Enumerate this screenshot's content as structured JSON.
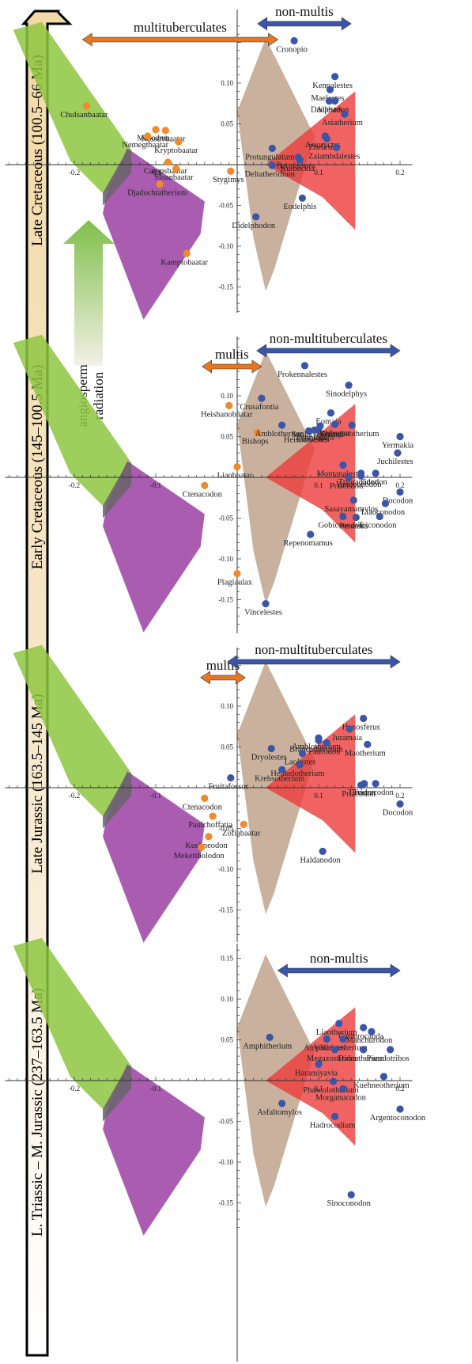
{
  "colors": {
    "multi_point": "#f08a2a",
    "nonmulti_point": "#3b55a8",
    "multi_arrow": "#e8751f",
    "nonmulti_arrow": "#3b55a8",
    "green_region": "#8dc63f",
    "purple_region": "#9b3fa3",
    "tan_region": "#bfa38c",
    "red_region": "#ee3b3b",
    "timebar_top": "#f3dfb4",
    "timebar_bottom": "#ffffff"
  },
  "radiation_label": [
    "angiosperm",
    "radiation"
  ],
  "chart_data": [
    {
      "type": "scatter",
      "period": "Late Cretaceous (100.5–66 Ma)",
      "x_ticks": [
        "-0.2",
        "-0.1",
        "0.1",
        "0.2"
      ],
      "y_ticks": [
        "0.10",
        "0.05",
        "-0.05",
        "-0.10",
        "-0.15"
      ],
      "range_arrows": [
        {
          "label": "multituberculates",
          "group": "multi",
          "x_from": -0.19,
          "x_to": 0.05
        },
        {
          "label": "non-multis",
          "group": "nonmulti",
          "x_from": 0.025,
          "x_to": 0.14
        }
      ],
      "multis": [
        {
          "name": "Chulsanbaatar",
          "x": -0.185,
          "y": 0.072
        },
        {
          "name": "Mesodma",
          "x": -0.1,
          "y": 0.043
        },
        {
          "name": "Nessovbaatar",
          "x": -0.088,
          "y": 0.042
        },
        {
          "name": "Nemegtbaatar",
          "x": -0.11,
          "y": 0.035
        },
        {
          "name": "Kryptobaatar",
          "x": -0.072,
          "y": 0.028
        },
        {
          "name": "Catopsbaatar",
          "x": -0.085,
          "y": 0.003
        },
        {
          "name": "Sloanbaatar",
          "x": -0.075,
          "y": -0.005
        },
        {
          "name": "Stygimys",
          "x": -0.008,
          "y": -0.008
        },
        {
          "name": "Djadochtatherium",
          "x": -0.095,
          "y": -0.024
        },
        {
          "name": "Kamptobaatar",
          "x": -0.062,
          "y": -0.109
        }
      ],
      "nonmultis": [
        {
          "name": "Cronopio",
          "x": 0.07,
          "y": 0.152
        },
        {
          "name": "Kennalestes",
          "x": 0.12,
          "y": 0.108
        },
        {
          "name": "Maelestes",
          "x": 0.114,
          "y": 0.092
        },
        {
          "name": "Daulestes",
          "x": 0.113,
          "y": 0.078
        },
        {
          "name": "Alphadon",
          "x": 0.12,
          "y": 0.078
        },
        {
          "name": "Asiatherium",
          "x": 0.132,
          "y": 0.062
        },
        {
          "name": "Asioryctes",
          "x": 0.108,
          "y": 0.035
        },
        {
          "name": "Zhelestes",
          "x": 0.11,
          "y": 0.032
        },
        {
          "name": "Protungulatum",
          "x": 0.043,
          "y": 0.02
        },
        {
          "name": "Barunlestes",
          "x": 0.075,
          "y": 0.009
        },
        {
          "name": "Kulbeckia",
          "x": 0.077,
          "y": 0.006
        },
        {
          "name": "Zalambdalestes",
          "x": 0.122,
          "y": 0.021
        },
        {
          "name": "Deltatheridium",
          "x": 0.043,
          "y": -0.001
        },
        {
          "name": "Eodelphis",
          "x": 0.08,
          "y": -0.041
        },
        {
          "name": "Didelphodon",
          "x": 0.023,
          "y": -0.064
        }
      ]
    },
    {
      "type": "scatter",
      "period": "Early Cretaceous (145–100.5 Ma)",
      "x_ticks": [
        "-0.2",
        "-0.1",
        "0.1",
        "0.2"
      ],
      "y_ticks": [
        "0.10",
        "0.05",
        "-0.05",
        "-0.10",
        "-0.15"
      ],
      "range_arrows": [
        {
          "label": "multis",
          "group": "multi",
          "x_from": -0.043,
          "x_to": 0.03
        },
        {
          "label": "non-multituberculates",
          "group": "nonmulti",
          "x_from": 0.024,
          "x_to": 0.2
        }
      ],
      "multis": [
        {
          "name": "Heishanobaatar",
          "x": -0.01,
          "y": 0.088
        },
        {
          "name": "Bishops",
          "x": 0.025,
          "y": 0.055
        },
        {
          "name": "Liaobaatar",
          "x": 0.0,
          "y": 0.013
        },
        {
          "name": "Ctenacodon",
          "x": -0.04,
          "y": -0.01
        },
        {
          "name": "Plagiaulax",
          "x": 0.0,
          "y": -0.118
        }
      ],
      "nonmultis": [
        {
          "name": "Prokennalestes",
          "x": 0.083,
          "y": 0.137
        },
        {
          "name": "Sinodelphys",
          "x": 0.137,
          "y": 0.113
        },
        {
          "name": "Crusafontia",
          "x": 0.03,
          "y": 0.097
        },
        {
          "name": "Eomaia",
          "x": 0.115,
          "y": 0.079
        },
        {
          "name": "Zhangheotherium",
          "x": 0.141,
          "y": 0.064
        },
        {
          "name": "Amblotherium",
          "x": 0.055,
          "y": 0.064
        },
        {
          "name": "Heishanlestes",
          "x": 0.088,
          "y": 0.057
        },
        {
          "name": "Spalacotherium",
          "x": 0.102,
          "y": 0.063
        },
        {
          "name": "Jeholodens",
          "x": 0.1,
          "y": 0.059
        },
        {
          "name": "Sinobaatar",
          "x": 0.12,
          "y": 0.065
        },
        {
          "name": "Yermakia",
          "x": 0.2,
          "y": 0.05
        },
        {
          "name": "Laolestes",
          "x": 0.095,
          "y": 0.058
        },
        {
          "name": "Juchilestes",
          "x": 0.197,
          "y": 0.03
        },
        {
          "name": "Montanalestes",
          "x": 0.13,
          "y": 0.015
        },
        {
          "name": "Trioracodon",
          "x": 0.152,
          "y": 0.005
        },
        {
          "name": "Tinodon",
          "x": 0.17,
          "y": 0.005
        },
        {
          "name": "Yanoconodon",
          "x": 0.152,
          "y": 0.002
        },
        {
          "name": "Priacodon",
          "x": 0.137,
          "y": 0.0
        },
        {
          "name": "Docodon",
          "x": 0.2,
          "y": -0.018
        },
        {
          "name": "Sasayamamylos",
          "x": 0.143,
          "y": -0.028
        },
        {
          "name": "Liaoconodon",
          "x": 0.182,
          "y": -0.032
        },
        {
          "name": "Gobiconodon",
          "x": 0.13,
          "y": -0.048
        },
        {
          "name": "Peramus",
          "x": 0.146,
          "y": -0.049
        },
        {
          "name": "Triconodon",
          "x": 0.175,
          "y": -0.048
        },
        {
          "name": "Repenomamus",
          "x": 0.09,
          "y": -0.07
        },
        {
          "name": "Vincelestes",
          "x": 0.035,
          "y": -0.155
        }
      ]
    },
    {
      "type": "scatter",
      "period": "Late Jurassic (163.5–145 Ma)",
      "x_ticks": [
        "-0.2",
        "-0.1",
        "0.1",
        "0.2"
      ],
      "y_ticks": [
        "0.10",
        "0.05",
        "-0.05",
        "-0.10",
        "-0.15"
      ],
      "range_arrows": [
        {
          "label": "multis",
          "group": "multi",
          "x_from": -0.045,
          "x_to": 0.01
        },
        {
          "label": "non-multituberculates",
          "group": "nonmulti",
          "x_from": -0.012,
          "x_to": 0.2
        }
      ],
      "multis": [
        {
          "name": "Ctenacodon",
          "x": -0.04,
          "y": -0.013
        },
        {
          "name": "Paulchoffatia",
          "x": -0.03,
          "y": -0.035
        },
        {
          "name": "Zofiabaatar",
          "x": 0.008,
          "y": -0.045
        },
        {
          "name": "Kuehneodon",
          "x": -0.035,
          "y": -0.06
        },
        {
          "name": "Meketibolodon",
          "x": -0.044,
          "y": -0.073
        }
      ],
      "nonmultis": [
        {
          "name": "Henosferus",
          "x": 0.155,
          "y": 0.085
        },
        {
          "name": "Juramaia",
          "x": 0.138,
          "y": 0.072
        },
        {
          "name": "Amblotherium",
          "x": 0.1,
          "y": 0.061
        },
        {
          "name": "Brancatherulum",
          "x": 0.1,
          "y": 0.058
        },
        {
          "name": "Maotherium",
          "x": 0.16,
          "y": 0.053
        },
        {
          "name": "Dryolestes",
          "x": 0.042,
          "y": 0.048
        },
        {
          "name": "Paurodon",
          "x": 0.11,
          "y": 0.055
        },
        {
          "name": "Laolestes",
          "x": 0.08,
          "y": 0.042
        },
        {
          "name": "Henkelotherium",
          "x": 0.077,
          "y": 0.028
        },
        {
          "name": "Krebsotherium",
          "x": 0.055,
          "y": 0.022
        },
        {
          "name": "Fruitafossor",
          "x": -0.008,
          "y": 0.012
        },
        {
          "name": "Trioracodon",
          "x": 0.17,
          "y": 0.005
        },
        {
          "name": "Tinodon",
          "x": 0.156,
          "y": 0.005
        },
        {
          "name": "Priacodon",
          "x": 0.152,
          "y": 0.003
        },
        {
          "name": "Docodon",
          "x": 0.2,
          "y": -0.02
        },
        {
          "name": "Haldanodon",
          "x": 0.105,
          "y": -0.078
        }
      ]
    },
    {
      "type": "scatter",
      "period": "L. Triassic – M. Jurassic (237–163.5 Ma)",
      "x_ticks": [
        "-0.2",
        "-0.1",
        "0.1",
        "0.2"
      ],
      "y_ticks": [
        "0.15",
        "0.10",
        "0.05",
        "-0.05",
        "-0.10",
        "-0.15"
      ],
      "range_arrows": [
        {
          "label": "non-multis",
          "group": "nonmulti",
          "x_from": 0.05,
          "x_to": 0.2
        }
      ],
      "multis": [],
      "nonmultis": [
        {
          "name": "Liaotherium",
          "x": 0.125,
          "y": 0.07
        },
        {
          "name": "Castorocauda",
          "x": 0.155,
          "y": 0.065
        },
        {
          "name": "Amphitherium",
          "x": 0.04,
          "y": 0.053
        },
        {
          "name": "Amphilestes",
          "x": 0.11,
          "y": 0.051
        },
        {
          "name": "Volaticotherium",
          "x": 0.13,
          "y": 0.051
        },
        {
          "name": "Manchurodon",
          "x": 0.165,
          "y": 0.06
        },
        {
          "name": "Megazostrodon",
          "x": 0.12,
          "y": 0.038
        },
        {
          "name": "Pseudotribos",
          "x": 0.188,
          "y": 0.038
        },
        {
          "name": "Dinnetherium",
          "x": 0.155,
          "y": 0.038
        },
        {
          "name": "Haramiyavia",
          "x": 0.1,
          "y": 0.02
        },
        {
          "name": "Kuehneotherium",
          "x": 0.18,
          "y": 0.005
        },
        {
          "name": "Phascolotherium",
          "x": 0.118,
          "y": -0.001
        },
        {
          "name": "Morganucodon",
          "x": 0.13,
          "y": -0.01
        },
        {
          "name": "Asfaltomylos",
          "x": 0.055,
          "y": -0.028
        },
        {
          "name": "Hadrocodium",
          "x": 0.12,
          "y": -0.044
        },
        {
          "name": "Argentoconodon",
          "x": 0.2,
          "y": -0.035
        },
        {
          "name": "Sinoconodon",
          "x": 0.14,
          "y": -0.14
        }
      ]
    }
  ]
}
